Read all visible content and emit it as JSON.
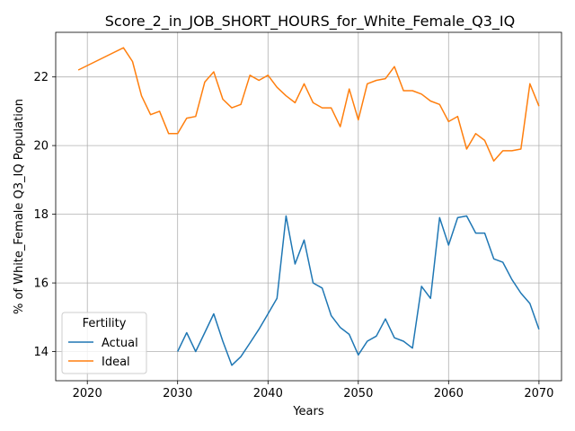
{
  "chart_data": {
    "type": "line",
    "title": "Score_2_in_JOB_SHORT_HOURS_for_White_Female_Q3_IQ",
    "xlabel": "Years",
    "ylabel": "% of White_Female Q3_IQ Population",
    "xlim": [
      2016.5,
      2072.5
    ],
    "ylim": [
      13.15,
      23.3
    ],
    "xticks": [
      2020,
      2030,
      2040,
      2050,
      2060,
      2070
    ],
    "yticks": [
      14,
      16,
      18,
      20,
      22
    ],
    "grid": true,
    "legend": {
      "title": "Fertility",
      "placement": "lower-left"
    },
    "series": [
      {
        "name": "Actual",
        "color": "#1f77b4",
        "x": [
          2030,
          2031,
          2032,
          2033,
          2034,
          2035,
          2036,
          2037,
          2038,
          2039,
          2040,
          2041,
          2042,
          2043,
          2044,
          2045,
          2046,
          2047,
          2048,
          2049,
          2050,
          2051,
          2052,
          2053,
          2054,
          2055,
          2056,
          2057,
          2058,
          2059,
          2060,
          2061,
          2062,
          2063,
          2064,
          2065,
          2066,
          2067,
          2068,
          2069,
          2070
        ],
        "y": [
          14.0,
          14.55,
          14.0,
          14.55,
          15.1,
          14.3,
          13.6,
          13.85,
          14.25,
          14.65,
          15.1,
          15.55,
          17.95,
          16.55,
          17.25,
          16.0,
          15.85,
          15.05,
          14.7,
          14.5,
          13.9,
          14.3,
          14.45,
          14.95,
          14.4,
          14.3,
          14.1,
          15.9,
          15.55,
          17.9,
          17.1,
          17.9,
          17.95,
          17.45,
          17.45,
          16.7,
          16.6,
          16.1,
          15.7,
          15.4,
          14.65
        ]
      },
      {
        "name": "Ideal",
        "color": "#ff7f0e",
        "x": [
          2019,
          2024,
          2025,
          2026,
          2027,
          2028,
          2029,
          2030,
          2031,
          2032,
          2033,
          2034,
          2035,
          2036,
          2037,
          2038,
          2039,
          2040,
          2041,
          2042,
          2043,
          2044,
          2045,
          2046,
          2047,
          2048,
          2049,
          2050,
          2051,
          2052,
          2053,
          2054,
          2055,
          2056,
          2057,
          2058,
          2059,
          2060,
          2061,
          2062,
          2063,
          2064,
          2065,
          2066,
          2067,
          2068,
          2069,
          2070
        ],
        "y": [
          22.2,
          22.85,
          22.45,
          21.45,
          20.9,
          21.0,
          20.35,
          20.35,
          20.8,
          20.85,
          21.85,
          22.15,
          21.35,
          21.1,
          21.2,
          22.05,
          21.9,
          22.05,
          21.7,
          21.45,
          21.25,
          21.8,
          21.25,
          21.1,
          21.1,
          20.55,
          21.65,
          20.75,
          21.8,
          21.9,
          21.95,
          22.3,
          21.6,
          21.6,
          21.5,
          21.3,
          21.2,
          20.7,
          20.85,
          19.9,
          20.35,
          20.15,
          19.55,
          19.85,
          19.85,
          19.9,
          21.8,
          21.15
        ]
      }
    ]
  }
}
